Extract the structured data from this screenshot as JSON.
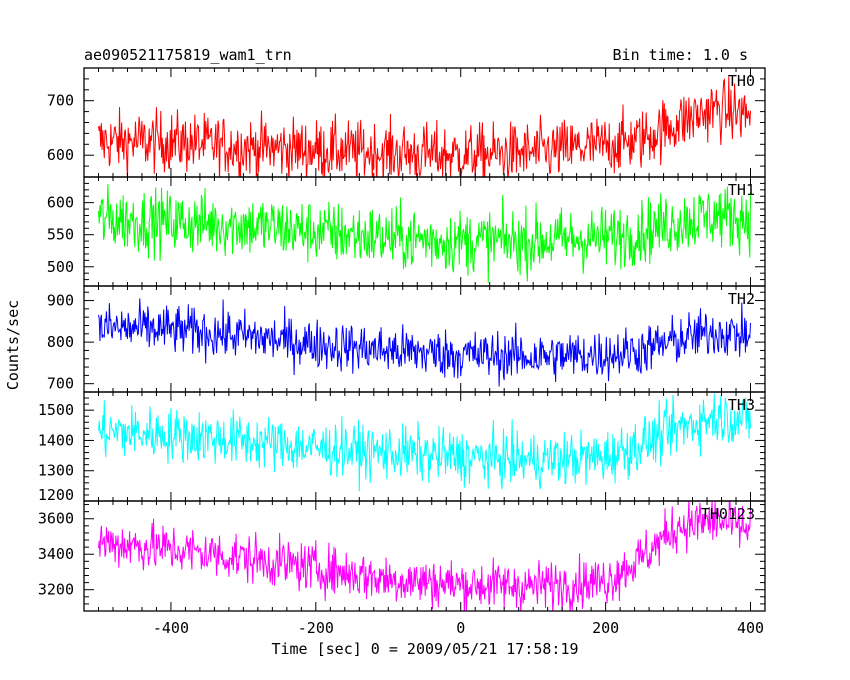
{
  "chart_data": {
    "type": "line",
    "title": "ae090521175819_wam1_trn",
    "subtitle": "Bin time: 1.0 s",
    "xlabel": "Time [sec] 0 = 2009/05/21 17:58:19",
    "ylabel": "Counts/sec",
    "xlim": [
      -520,
      420
    ],
    "x_ticks": [
      -400,
      -200,
      0,
      200,
      400
    ],
    "x_range": [
      -500,
      400
    ],
    "bin_seconds": 1.0,
    "grid": false,
    "panels": [
      {
        "name": "TH0",
        "color": "#ff0000",
        "ylim": [
          560,
          760
        ],
        "y_ticks": [
          600,
          700
        ],
        "trend_t": [
          -500,
          -400,
          -300,
          -200,
          -100,
          0,
          100,
          200,
          250,
          300,
          350,
          400
        ],
        "trend_v": [
          625,
          625,
          615,
          610,
          605,
          600,
          605,
          618,
          630,
          660,
          685,
          675
        ],
        "noise": 28
      },
      {
        "name": "TH1",
        "color": "#00ff00",
        "ylim": [
          470,
          640
        ],
        "y_ticks": [
          500,
          550,
          600
        ],
        "trend_t": [
          -500,
          -400,
          -300,
          -200,
          -100,
          0,
          100,
          200,
          250,
          300,
          350,
          400
        ],
        "trend_v": [
          575,
          570,
          565,
          555,
          545,
          540,
          540,
          545,
          555,
          570,
          580,
          575
        ],
        "noise": 25
      },
      {
        "name": "TH2",
        "color": "#0000ff",
        "ylim": [
          680,
          935
        ],
        "y_ticks": [
          700,
          800,
          900
        ],
        "trend_t": [
          -500,
          -400,
          -300,
          -200,
          -100,
          0,
          100,
          200,
          250,
          300,
          350,
          400
        ],
        "trend_v": [
          835,
          830,
          815,
          795,
          780,
          770,
          765,
          770,
          780,
          805,
          825,
          815
        ],
        "noise": 30
      },
      {
        "name": "TH3",
        "color": "#00ffff",
        "ylim": [
          1200,
          1560
        ],
        "y_ticks": [
          1200,
          1300,
          1400,
          1500
        ],
        "trend_t": [
          -500,
          -400,
          -300,
          -200,
          -100,
          0,
          100,
          200,
          250,
          300,
          350,
          400
        ],
        "trend_v": [
          1430,
          1420,
          1400,
          1375,
          1360,
          1345,
          1335,
          1345,
          1390,
          1440,
          1480,
          1470
        ],
        "noise": 45
      },
      {
        "name": "TH0123",
        "color": "#ff00ff",
        "ylim": [
          3080,
          3700
        ],
        "y_ticks": [
          3200,
          3400,
          3600
        ],
        "trend_t": [
          -500,
          -400,
          -300,
          -200,
          -100,
          0,
          100,
          200,
          250,
          300,
          350,
          400
        ],
        "trend_v": [
          3470,
          3430,
          3380,
          3320,
          3260,
          3230,
          3220,
          3250,
          3380,
          3560,
          3590,
          3540
        ],
        "noise": 70
      }
    ]
  }
}
